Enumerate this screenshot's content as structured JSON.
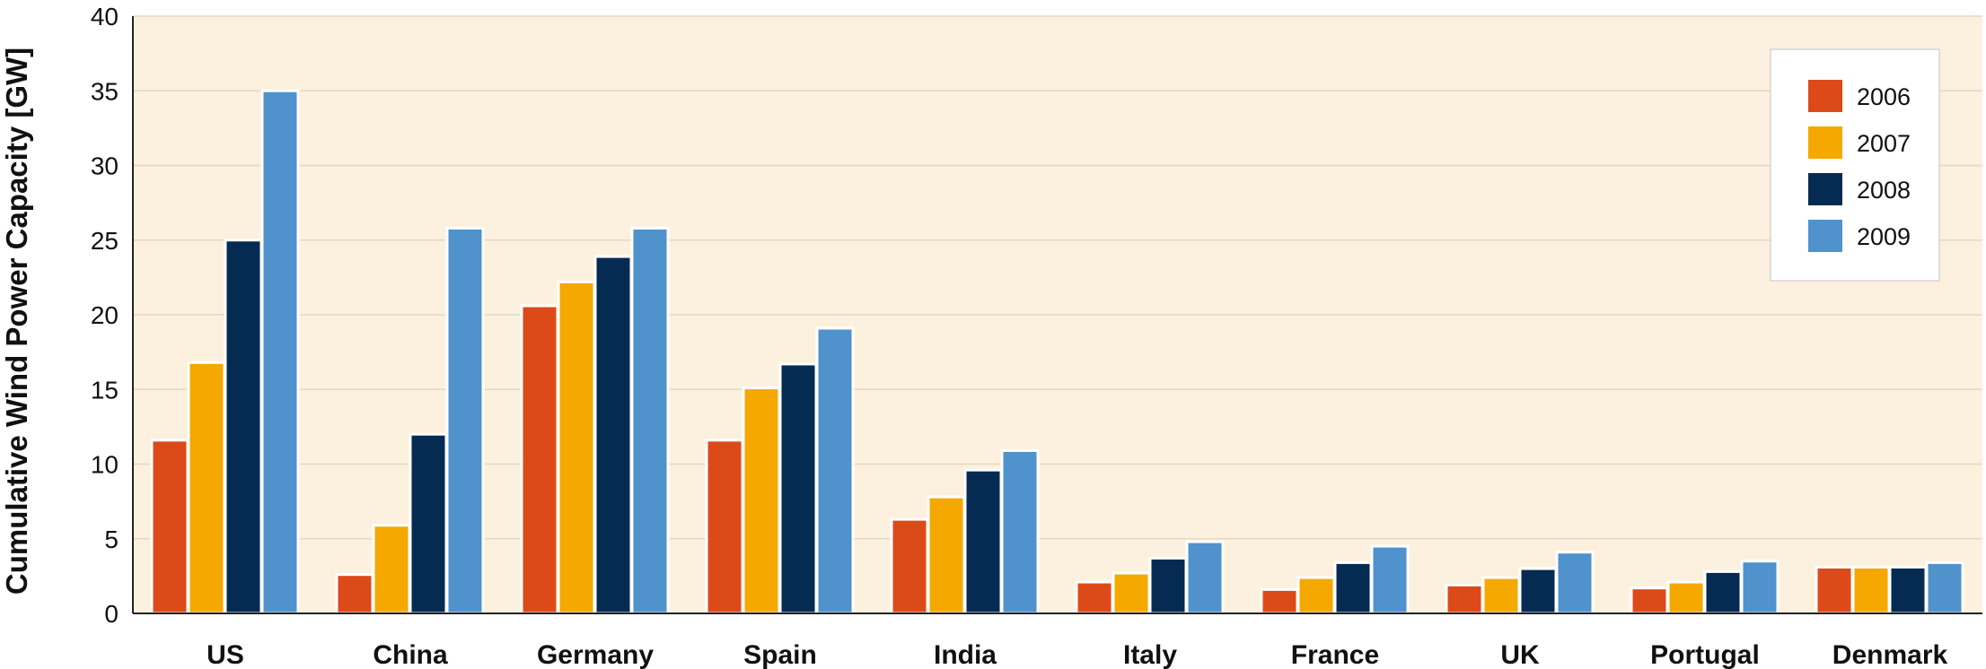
{
  "chart_data": {
    "type": "bar",
    "title": "",
    "xlabel": "",
    "ylabel": "Cumulative Wind Power Capacity [GW]",
    "ylim": [
      0,
      40
    ],
    "yticks": [
      0,
      5,
      10,
      15,
      20,
      25,
      30,
      35,
      40
    ],
    "grid": true,
    "legend_position": "top-right",
    "categories": [
      "US",
      "China",
      "Germany",
      "Spain",
      "India",
      "Italy",
      "France",
      "UK",
      "Portugal",
      "Denmark"
    ],
    "series": [
      {
        "name": "2006",
        "color": "#dd4a1a",
        "values": [
          11.6,
          2.6,
          20.6,
          11.6,
          6.3,
          2.1,
          1.6,
          1.9,
          1.7,
          3.1
        ]
      },
      {
        "name": "2007",
        "color": "#f5a800",
        "values": [
          16.8,
          5.9,
          22.2,
          15.1,
          7.8,
          2.7,
          2.4,
          2.4,
          2.1,
          3.1
        ]
      },
      {
        "name": "2008",
        "color": "#062b52",
        "values": [
          25.0,
          12.0,
          23.9,
          16.7,
          9.6,
          3.7,
          3.4,
          3.0,
          2.8,
          3.1
        ]
      },
      {
        "name": "2009",
        "color": "#4f92cc",
        "values": [
          35.0,
          25.8,
          25.8,
          19.1,
          10.9,
          4.8,
          4.5,
          4.1,
          3.5,
          3.4
        ]
      }
    ]
  },
  "style": {
    "plot_background": "#fcf1de",
    "grid_color": "#e6d8c0",
    "bar_border": "#ffffff",
    "axis_color": "#222222"
  }
}
